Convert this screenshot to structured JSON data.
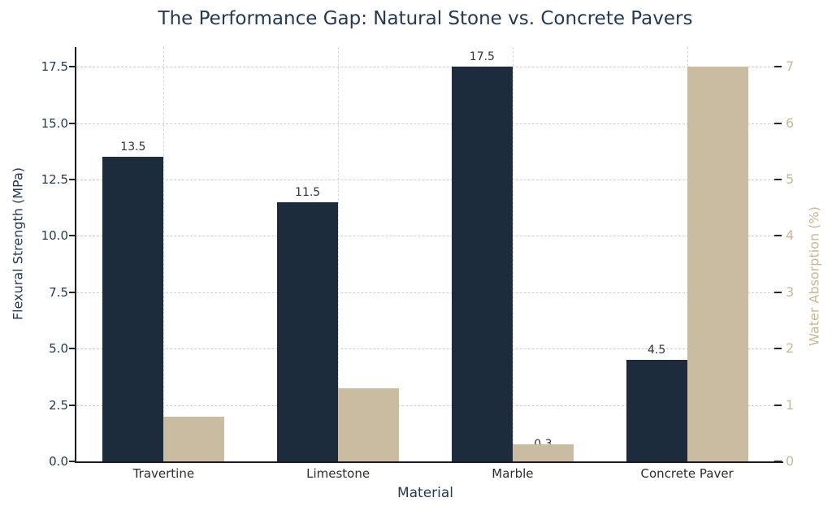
{
  "title": "The Performance Gap: Natural Stone vs. Concrete Pavers",
  "colors": {
    "background": "#ffffff",
    "navy_bar": "#1d2c3d",
    "tan_bar": "#c9bca0",
    "navy_text": "#243a52",
    "tan_text": "#c6b892",
    "grid": "#cdcdcd",
    "spine": "#1a1a24",
    "value_label": "#333333",
    "x_tick_text": "#2d2d2d"
  },
  "chart_data": {
    "type": "bar",
    "title": "The Performance Gap: Natural Stone vs. Concrete Pavers",
    "xlabel": "Material",
    "categories": [
      "Travertine",
      "Limestone",
      "Marble",
      "Concrete Paver"
    ],
    "series": [
      {
        "key": "flexural-strength",
        "name": "Flexural Strength (MPa)",
        "axis": "left",
        "color": "#1d2c3d",
        "values": [
          13.5,
          11.5,
          17.5,
          4.5
        ],
        "bar_labels": [
          "13.5",
          "11.5",
          "17.5",
          "4.5"
        ],
        "label_placement": "above"
      },
      {
        "key": "water-absorption",
        "name": "Water Absorption (%)",
        "axis": "right",
        "color": "#c9bca0",
        "values": [
          0.8,
          1.3,
          0.3,
          7.0
        ],
        "bar_labels": [
          null,
          null,
          "0.3",
          null
        ],
        "label_placement": "overlap-top"
      }
    ],
    "left_axis": {
      "label": "Flexural Strength (MPa)",
      "ticks": [
        "0.0",
        "2.5",
        "5.0",
        "7.5",
        "10.0",
        "12.5",
        "15.0",
        "17.5"
      ],
      "range": [
        0,
        18.375
      ],
      "color": "#243a52"
    },
    "right_axis": {
      "label": "Water Absorption (%)",
      "ticks": [
        "0",
        "1",
        "2",
        "3",
        "4",
        "5",
        "6",
        "7"
      ],
      "range": [
        0,
        7.35
      ],
      "color": "#c6b892"
    },
    "grid": {
      "horizontal": true,
      "vertical": true,
      "style": "dashed",
      "color": "#cdcdcd"
    },
    "legend": "none"
  }
}
